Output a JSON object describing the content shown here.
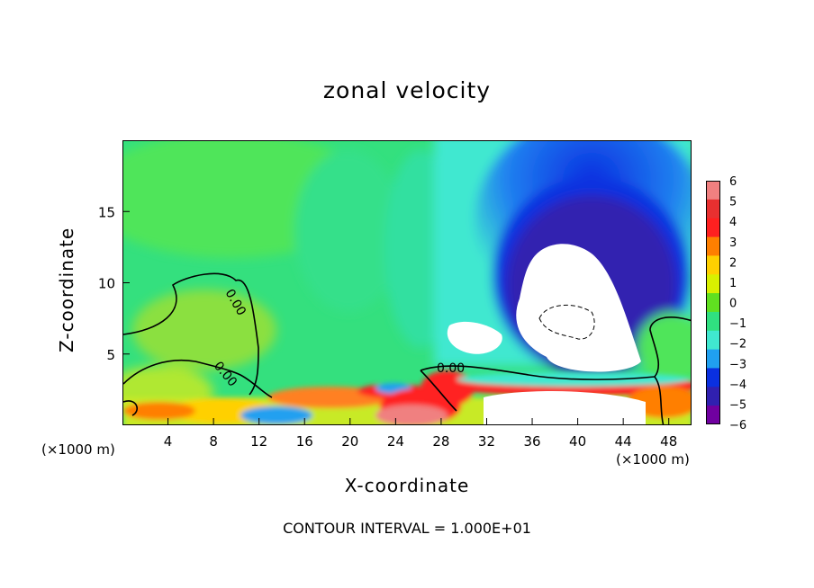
{
  "title": "zonal velocity",
  "footer": "CONTOUR INTERVAL = 1.000E+01",
  "colors": {
    "background": "#ffffff",
    "ink": "#000000"
  },
  "chart_data": {
    "type": "heatmap",
    "title": "zonal velocity",
    "xlabel": "X-coordinate",
    "ylabel": "Z-coordinate",
    "x_units": "(×1000 m)",
    "xlim": [
      0,
      50
    ],
    "ylim": [
      0,
      20
    ],
    "x_ticks": [
      4,
      8,
      12,
      16,
      20,
      24,
      28,
      32,
      36,
      40,
      44,
      48
    ],
    "y_ticks": [
      5,
      10,
      15
    ],
    "colorbar": {
      "labels": [
        "6",
        "5",
        "4",
        "3",
        "2",
        "1",
        "0",
        "−1",
        "−2",
        "−3",
        "−4",
        "−5",
        "−6"
      ],
      "values": [
        6,
        5,
        4,
        3,
        2,
        1,
        0,
        -1,
        -2,
        -3,
        -4,
        -5,
        -6
      ],
      "colors": [
        "#f08080",
        "#e83030",
        "#ff2020",
        "#ff7f00",
        "#ffd000",
        "#d8f000",
        "#60e020",
        "#30e080",
        "#40e8d0",
        "#20a0f0",
        "#0a30e0",
        "#3020b0",
        "#7000a0"
      ]
    },
    "contour_labels": [
      "0.00",
      "0.00",
      "0.00"
    ],
    "contour_interval": "1.000E+01"
  }
}
